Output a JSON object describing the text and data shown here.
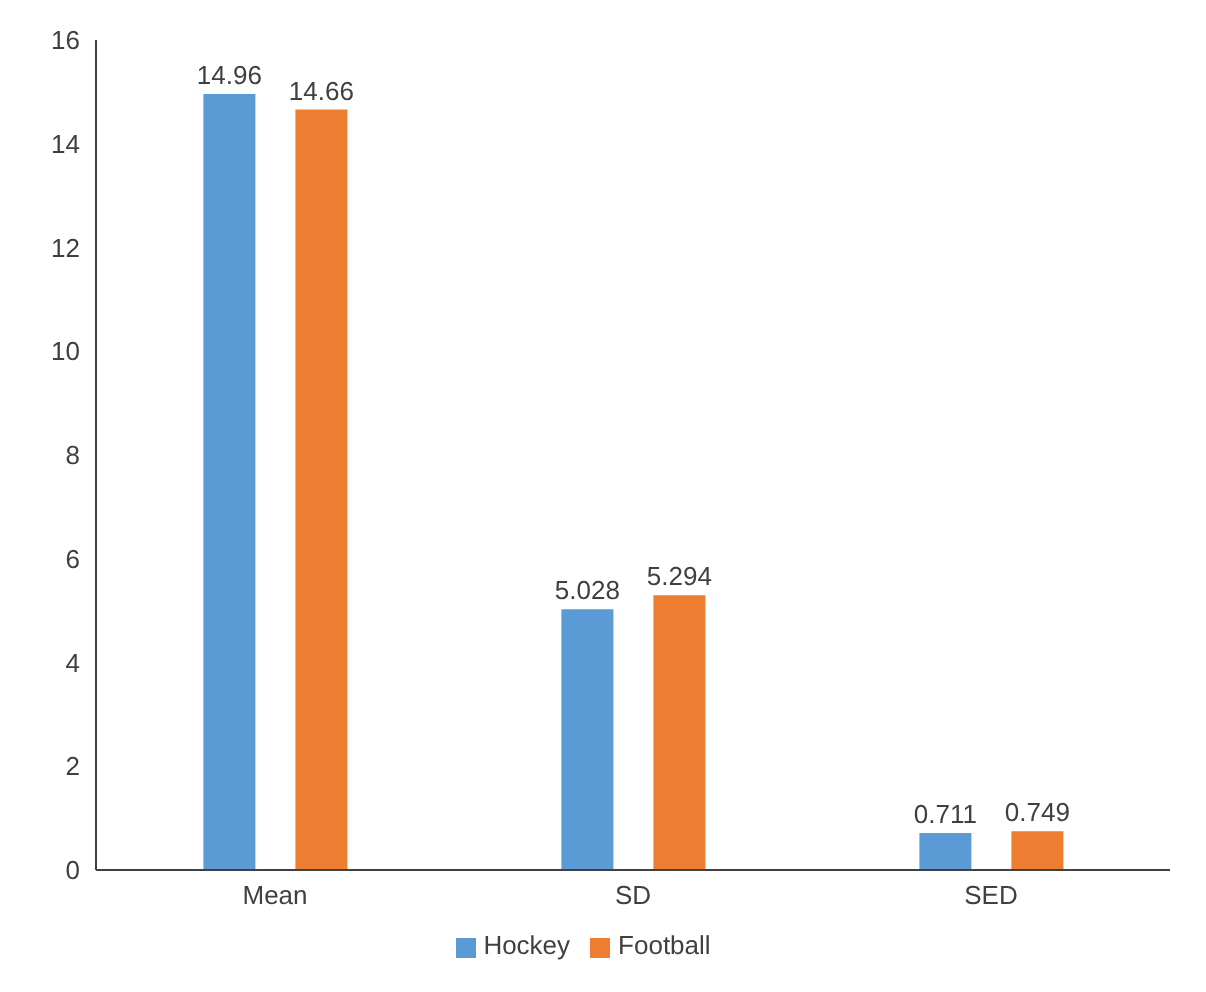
{
  "chart_data": {
    "type": "bar",
    "categories": [
      "Mean",
      "SD",
      "SED"
    ],
    "series": [
      {
        "name": "Hockey",
        "color": "#5b9bd5",
        "values": [
          14.96,
          5.028,
          0.711
        ]
      },
      {
        "name": "Football",
        "color": "#ed7d31",
        "values": [
          14.66,
          5.294,
          0.749
        ]
      }
    ],
    "ylim": [
      0,
      16
    ],
    "yticks": [
      0,
      2,
      4,
      6,
      8,
      10,
      12,
      14,
      16
    ],
    "grid": false,
    "legend": "bottom",
    "data_labels": true
  }
}
